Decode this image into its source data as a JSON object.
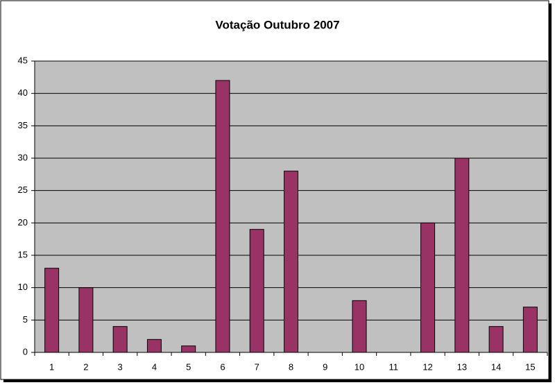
{
  "chart_data": {
    "type": "bar",
    "title": "Votação Outubro 2007",
    "categories": [
      "1",
      "2",
      "3",
      "4",
      "5",
      "6",
      "7",
      "8",
      "9",
      "10",
      "11",
      "12",
      "13",
      "14",
      "15"
    ],
    "values": [
      13,
      10,
      4,
      2,
      1,
      42,
      19,
      28,
      0,
      8,
      0,
      20,
      30,
      4,
      7
    ],
    "color": "#993366",
    "ylim": [
      0,
      45
    ],
    "yticks": [
      0,
      5,
      10,
      15,
      20,
      25,
      30,
      35,
      40,
      45
    ],
    "grid": true
  }
}
